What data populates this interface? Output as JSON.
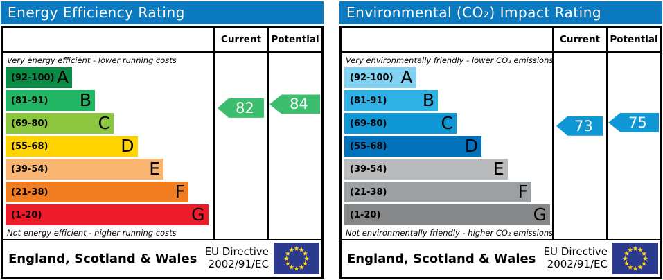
{
  "colors": {
    "header_bg": "#0b7ac1",
    "flag_bg": "#2b3a8c",
    "flag_star": "#ffd617",
    "border": "#000000"
  },
  "panels": [
    {
      "id": "energy-efficiency",
      "title": "Energy Efficiency Rating",
      "columns": {
        "current": "Current",
        "potential": "Potential"
      },
      "top_note": "Very energy efficient - lower running costs",
      "bottom_note": "Not energy efficient - higher running costs",
      "bands": [
        {
          "label": "(92-100)",
          "letter": "A",
          "min": 92,
          "max": 100,
          "color": "#0a8c46",
          "width_pct": 32
        },
        {
          "label": "(81-91)",
          "letter": "B",
          "min": 81,
          "max": 91,
          "color": "#21b564",
          "width_pct": 43
        },
        {
          "label": "(69-80)",
          "letter": "C",
          "min": 69,
          "max": 80,
          "color": "#8cc63e",
          "width_pct": 52
        },
        {
          "label": "(55-68)",
          "letter": "D",
          "min": 55,
          "max": 68,
          "color": "#ffd400",
          "width_pct": 63.5
        },
        {
          "label": "(39-54)",
          "letter": "E",
          "min": 39,
          "max": 54,
          "color": "#fab573",
          "width_pct": 76
        },
        {
          "label": "(21-38)",
          "letter": "F",
          "min": 21,
          "max": 38,
          "color": "#f27d20",
          "width_pct": 88
        },
        {
          "label": "(1-20)",
          "letter": "G",
          "min": 1,
          "max": 20,
          "color": "#ed1c2b",
          "width_pct": 97.5
        }
      ],
      "current": {
        "value": 82,
        "color": "#3cbe6e"
      },
      "potential": {
        "value": 84,
        "color": "#3cbe6e"
      },
      "footer": {
        "region": "England, Scotland & Wales",
        "directive_line1": "EU Directive",
        "directive_line2": "2002/91/EC"
      }
    },
    {
      "id": "environmental-impact",
      "title": "Environmental (CO₂) Impact Rating",
      "columns": {
        "current": "Current",
        "potential": "Potential"
      },
      "top_note": "Very environmentally friendly - lower CO₂ emissions",
      "bottom_note": "Not environmentally friendly - higher CO₂ emissions",
      "bands": [
        {
          "label": "(92-100)",
          "letter": "A",
          "min": 92,
          "max": 100,
          "color": "#81d2f1",
          "width_pct": 34.5
        },
        {
          "label": "(81-91)",
          "letter": "B",
          "min": 81,
          "max": 91,
          "color": "#2fb1e6",
          "width_pct": 45
        },
        {
          "label": "(69-80)",
          "letter": "C",
          "min": 69,
          "max": 80,
          "color": "#0f96d4",
          "width_pct": 54
        },
        {
          "label": "(55-68)",
          "letter": "D",
          "min": 55,
          "max": 68,
          "color": "#0071ba",
          "width_pct": 66
        },
        {
          "label": "(39-54)",
          "letter": "E",
          "min": 39,
          "max": 54,
          "color": "#b8babc",
          "width_pct": 78.5
        },
        {
          "label": "(21-38)",
          "letter": "F",
          "min": 21,
          "max": 38,
          "color": "#9da0a3",
          "width_pct": 90
        },
        {
          "label": "(1-20)",
          "letter": "G",
          "min": 1,
          "max": 20,
          "color": "#858789",
          "width_pct": 99
        }
      ],
      "current": {
        "value": 73,
        "color": "#0f96d4"
      },
      "potential": {
        "value": 75,
        "color": "#0f96d4"
      },
      "footer": {
        "region": "England, Scotland & Wales",
        "directive_line1": "EU Directive",
        "directive_line2": "2002/91/EC"
      }
    }
  ],
  "chart_data": [
    {
      "type": "bar",
      "title": "Energy Efficiency Rating",
      "orientation": "horizontal",
      "categories": [
        "A (92-100)",
        "B (81-91)",
        "C (69-80)",
        "D (55-68)",
        "E (39-54)",
        "F (21-38)",
        "G (1-20)"
      ],
      "values": [
        32,
        43,
        52,
        63.5,
        76,
        88,
        97.5
      ],
      "value_unit": "relative bar width %",
      "band_ranges": [
        [
          92,
          100
        ],
        [
          81,
          91
        ],
        [
          69,
          80
        ],
        [
          55,
          68
        ],
        [
          39,
          54
        ],
        [
          21,
          38
        ],
        [
          1,
          20
        ]
      ],
      "series": [
        {
          "name": "Current",
          "values": [
            82
          ]
        },
        {
          "name": "Potential",
          "values": [
            84
          ]
        }
      ],
      "annotations": [
        "Very energy efficient - lower running costs",
        "Not energy efficient - higher running costs",
        "England, Scotland & Wales",
        "EU Directive 2002/91/EC"
      ]
    },
    {
      "type": "bar",
      "title": "Environmental (CO₂) Impact Rating",
      "orientation": "horizontal",
      "categories": [
        "A (92-100)",
        "B (81-91)",
        "C (69-80)",
        "D (55-68)",
        "E (39-54)",
        "F (21-38)",
        "G (1-20)"
      ],
      "values": [
        34.5,
        45,
        54,
        66,
        78.5,
        90,
        99
      ],
      "value_unit": "relative bar width %",
      "band_ranges": [
        [
          92,
          100
        ],
        [
          81,
          91
        ],
        [
          69,
          80
        ],
        [
          55,
          68
        ],
        [
          39,
          54
        ],
        [
          21,
          38
        ],
        [
          1,
          20
        ]
      ],
      "series": [
        {
          "name": "Current",
          "values": [
            73
          ]
        },
        {
          "name": "Potential",
          "values": [
            75
          ]
        }
      ],
      "annotations": [
        "Very environmentally friendly - lower CO₂ emissions",
        "Not environmentally friendly - higher CO₂ emissions",
        "England, Scotland & Wales",
        "EU Directive 2002/91/EC"
      ]
    }
  ]
}
